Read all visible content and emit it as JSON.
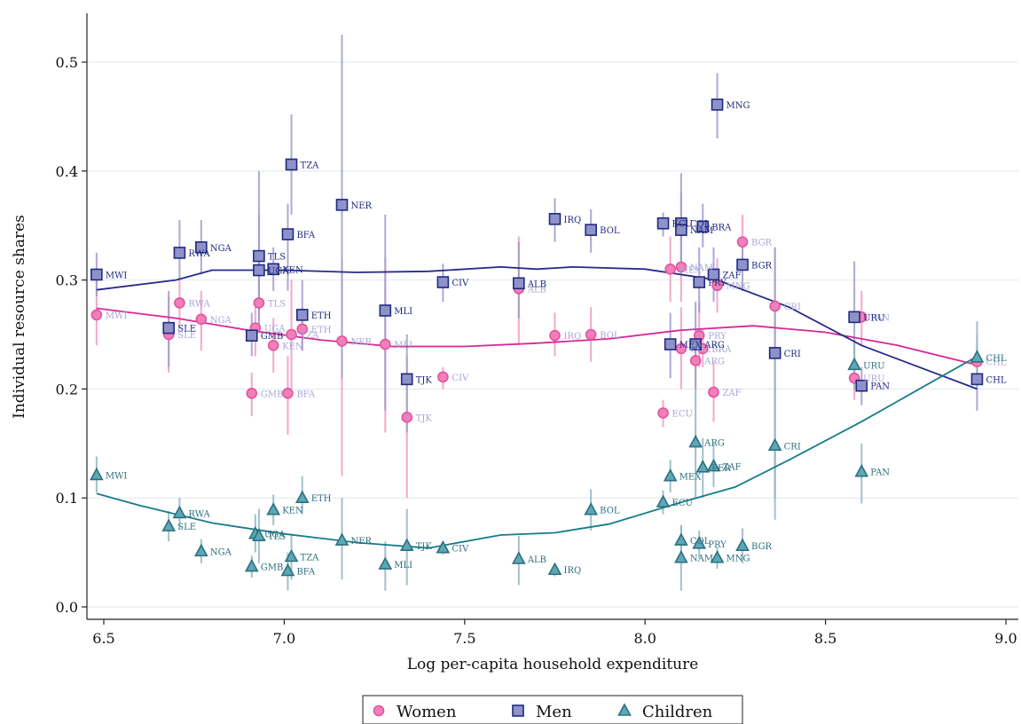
{
  "chart_data": {
    "type": "scatter",
    "xlabel": "Log per-capita household expenditure",
    "ylabel": "Individual resource shares",
    "xlim": [
      6.45,
      9.05
    ],
    "ylim": [
      -0.01,
      0.535
    ],
    "x_ticks": [
      "6.5",
      "7.0",
      "7.5",
      "8.0",
      "8.5",
      "9.0"
    ],
    "y_ticks": [
      "0.0",
      "0.1",
      "0.2",
      "0.3",
      "0.4",
      "0.5"
    ],
    "grid": "horizontal",
    "legend_position": "bottom",
    "legend": [
      "Women",
      "Men",
      "Children"
    ],
    "colors": {
      "women": "#e0559d",
      "women_fill": "#f27fba",
      "women_label": "#a9a6d6",
      "women_line": "#d8279a",
      "men": "#1f2a80",
      "men_fill": "#8f92c9",
      "men_label": "#1f2a80",
      "men_line": "#262b8c",
      "children": "#2e6f7e",
      "children_fill": "#5ba9b7",
      "children_label": "#2e6f7e",
      "children_line": "#187b8a",
      "ci_women": "#f19ac4",
      "ci_men": "#9c9ccd",
      "ci_children": "#90b7c2",
      "grid": "#dfe8ec"
    },
    "series": [
      {
        "name": "Women",
        "marker": "circle",
        "points": [
          {
            "label": "MWI",
            "x": 6.48,
            "y": 0.268,
            "ci": [
              0.24,
              0.3
            ]
          },
          {
            "label": "SLE",
            "x": 6.68,
            "y": 0.25,
            "ci": [
              0.215,
              0.285
            ]
          },
          {
            "label": "RWA",
            "x": 6.71,
            "y": 0.279,
            "ci": [
              0.255,
              0.3
            ]
          },
          {
            "label": "NGA",
            "x": 6.77,
            "y": 0.264,
            "ci": [
              0.235,
              0.29
            ]
          },
          {
            "label": "GMB",
            "x": 6.91,
            "y": 0.196,
            "ci": [
              0.175,
              0.215
            ]
          },
          {
            "label": "UGA",
            "x": 6.92,
            "y": 0.256,
            "ci": [
              0.23,
              0.28
            ]
          },
          {
            "label": "TLS",
            "x": 6.93,
            "y": 0.279,
            "ci": [
              0.255,
              0.3
            ]
          },
          {
            "label": "KEN",
            "x": 6.97,
            "y": 0.24,
            "ci": [
              0.215,
              0.265
            ]
          },
          {
            "label": "BFA",
            "x": 7.01,
            "y": 0.196,
            "ci": [
              0.158,
              0.23
            ]
          },
          {
            "label": "TZA",
            "x": 7.02,
            "y": 0.25,
            "ci": [
              0.2,
              0.3
            ]
          },
          {
            "label": "ETH",
            "x": 7.05,
            "y": 0.255,
            "ci": [
              0.235,
              0.275
            ]
          },
          {
            "label": "NER",
            "x": 7.16,
            "y": 0.244,
            "ci": [
              0.12,
              0.32
            ]
          },
          {
            "label": "MLI",
            "x": 7.28,
            "y": 0.241,
            "ci": [
              0.16,
              0.32
            ]
          },
          {
            "label": "TJK",
            "x": 7.34,
            "y": 0.174,
            "ci": [
              0.1,
              0.23
            ]
          },
          {
            "label": "CIV",
            "x": 7.44,
            "y": 0.211,
            "ci": [
              0.2,
              0.22
            ]
          },
          {
            "label": "ALB",
            "x": 7.65,
            "y": 0.292,
            "ci": [
              0.24,
              0.34
            ]
          },
          {
            "label": "IRQ",
            "x": 7.75,
            "y": 0.249,
            "ci": [
              0.23,
              0.27
            ]
          },
          {
            "label": "BOL",
            "x": 7.85,
            "y": 0.25,
            "ci": [
              0.225,
              0.275
            ]
          },
          {
            "label": "ECU",
            "x": 8.05,
            "y": 0.178,
            "ci": [
              0.165,
              0.19
            ]
          },
          {
            "label": "MEX",
            "x": 8.07,
            "y": 0.31,
            "ci": [
              0.28,
              0.34
            ]
          },
          {
            "label": "NAM",
            "x": 8.1,
            "y": 0.312,
            "ci": [
              0.28,
              0.345
            ]
          },
          {
            "label": "COL",
            "x": 8.1,
            "y": 0.237,
            "ci": [
              0.2,
              0.275
            ]
          },
          {
            "label": "ARG",
            "x": 8.14,
            "y": 0.226,
            "ci": [
              0.2,
              0.25
            ]
          },
          {
            "label": "PRY",
            "x": 8.15,
            "y": 0.249,
            "ci": [
              0.22,
              0.28
            ]
          },
          {
            "label": "BRA",
            "x": 8.16,
            "y": 0.237,
            "ci": [
              0.22,
              0.255
            ]
          },
          {
            "label": "ZAF",
            "x": 8.19,
            "y": 0.197,
            "ci": [
              0.17,
              0.225
            ]
          },
          {
            "label": "MNG",
            "x": 8.2,
            "y": 0.295,
            "ci": [
              0.27,
              0.32
            ]
          },
          {
            "label": "BGR",
            "x": 8.27,
            "y": 0.335,
            "ci": [
              0.31,
              0.36
            ]
          },
          {
            "label": "CRI",
            "x": 8.36,
            "y": 0.276,
            "ci": [
              0.23,
              0.33
            ]
          },
          {
            "label": "URU",
            "x": 8.58,
            "y": 0.21,
            "ci": [
              0.19,
              0.23
            ]
          },
          {
            "label": "PAN",
            "x": 8.6,
            "y": 0.266,
            "ci": [
              0.24,
              0.29
            ]
          },
          {
            "label": "CHL",
            "x": 8.92,
            "y": 0.225,
            "ci": [
              0.2,
              0.25
            ]
          }
        ]
      },
      {
        "name": "Men",
        "marker": "square",
        "points": [
          {
            "label": "MWI",
            "x": 6.48,
            "y": 0.305,
            "ci": [
              0.285,
              0.325
            ]
          },
          {
            "label": "SLE",
            "x": 6.68,
            "y": 0.256,
            "ci": [
              0.22,
              0.29
            ]
          },
          {
            "label": "RWA",
            "x": 6.71,
            "y": 0.325,
            "ci": [
              0.3,
              0.355
            ]
          },
          {
            "label": "NGA",
            "x": 6.77,
            "y": 0.33,
            "ci": [
              0.305,
              0.355
            ]
          },
          {
            "label": "GMB",
            "x": 6.91,
            "y": 0.249,
            "ci": [
              0.23,
              0.27
            ]
          },
          {
            "label": "TLS",
            "x": 6.93,
            "y": 0.322,
            "ci": [
              0.27,
              0.4
            ]
          },
          {
            "label": "UGA",
            "x": 6.93,
            "y": 0.309,
            "ci": [
              0.26,
              0.36
            ]
          },
          {
            "label": "KEN",
            "x": 6.97,
            "y": 0.31,
            "ci": [
              0.29,
              0.33
            ]
          },
          {
            "label": "BFA",
            "x": 7.01,
            "y": 0.342,
            "ci": [
              0.29,
              0.37
            ]
          },
          {
            "label": "TZA",
            "x": 7.02,
            "y": 0.406,
            "ci": [
              0.36,
              0.452
            ]
          },
          {
            "label": "ETH",
            "x": 7.05,
            "y": 0.268,
            "ci": [
              0.235,
              0.3
            ]
          },
          {
            "label": "NER",
            "x": 7.16,
            "y": 0.369,
            "ci": [
              0.21,
              0.525
            ]
          },
          {
            "label": "MLI",
            "x": 7.28,
            "y": 0.272,
            "ci": [
              0.18,
              0.36
            ]
          },
          {
            "label": "TJK",
            "x": 7.34,
            "y": 0.209,
            "ci": [
              0.16,
              0.25
            ]
          },
          {
            "label": "CIV",
            "x": 7.44,
            "y": 0.298,
            "ci": [
              0.28,
              0.315
            ]
          },
          {
            "label": "ALB",
            "x": 7.65,
            "y": 0.297,
            "ci": [
              0.265,
              0.335
            ]
          },
          {
            "label": "IRQ",
            "x": 7.75,
            "y": 0.356,
            "ci": [
              0.335,
              0.375
            ]
          },
          {
            "label": "BOL",
            "x": 7.85,
            "y": 0.346,
            "ci": [
              0.325,
              0.365
            ]
          },
          {
            "label": "ECU",
            "x": 8.05,
            "y": 0.352,
            "ci": [
              0.34,
              0.362
            ]
          },
          {
            "label": "MEX",
            "x": 8.07,
            "y": 0.241,
            "ci": [
              0.21,
              0.27
            ]
          },
          {
            "label": "COL",
            "x": 8.1,
            "y": 0.352,
            "ci": [
              0.31,
              0.398
            ]
          },
          {
            "label": "NAM",
            "x": 8.1,
            "y": 0.346,
            "ci": [
              0.31,
              0.38
            ]
          },
          {
            "label": "ARG",
            "x": 8.14,
            "y": 0.241,
            "ci": [
              0.2,
              0.28
            ]
          },
          {
            "label": "BRA",
            "x": 8.16,
            "y": 0.349,
            "ci": [
              0.33,
              0.37
            ]
          },
          {
            "label": "PRY",
            "x": 8.15,
            "y": 0.298,
            "ci": [
              0.27,
              0.33
            ]
          },
          {
            "label": "ZAF",
            "x": 8.19,
            "y": 0.305,
            "ci": [
              0.28,
              0.33
            ]
          },
          {
            "label": "MNG",
            "x": 8.2,
            "y": 0.461,
            "ci": [
              0.43,
              0.49
            ]
          },
          {
            "label": "BGR",
            "x": 8.27,
            "y": 0.314,
            "ci": [
              0.29,
              0.34
            ]
          },
          {
            "label": "CRI",
            "x": 8.36,
            "y": 0.233,
            "ci": [
              0.1,
              0.33
            ]
          },
          {
            "label": "URU",
            "x": 8.58,
            "y": 0.266,
            "ci": [
              0.215,
              0.317
            ]
          },
          {
            "label": "PAN",
            "x": 8.6,
            "y": 0.203,
            "ci": [
              0.185,
              0.22
            ]
          },
          {
            "label": "CHL",
            "x": 8.92,
            "y": 0.209,
            "ci": [
              0.18,
              0.24
            ]
          }
        ]
      },
      {
        "name": "Children",
        "marker": "triangle",
        "points": [
          {
            "label": "MWI",
            "x": 6.48,
            "y": 0.121,
            "ci": [
              0.105,
              0.138
            ]
          },
          {
            "label": "SLE",
            "x": 6.68,
            "y": 0.074,
            "ci": [
              0.06,
              0.088
            ]
          },
          {
            "label": "RWA",
            "x": 6.71,
            "y": 0.086,
            "ci": [
              0.072,
              0.1
            ]
          },
          {
            "label": "NGA",
            "x": 6.77,
            "y": 0.051,
            "ci": [
              0.04,
              0.062
            ]
          },
          {
            "label": "GMB",
            "x": 6.91,
            "y": 0.037,
            "ci": [
              0.027,
              0.047
            ]
          },
          {
            "label": "UGA",
            "x": 6.92,
            "y": 0.067,
            "ci": [
              0.05,
              0.085
            ]
          },
          {
            "label": "TLS",
            "x": 6.93,
            "y": 0.065,
            "ci": [
              0.04,
              0.09
            ]
          },
          {
            "label": "KEN",
            "x": 6.97,
            "y": 0.089,
            "ci": [
              0.075,
              0.103
            ]
          },
          {
            "label": "BFA",
            "x": 7.01,
            "y": 0.033,
            "ci": [
              0.015,
              0.05
            ]
          },
          {
            "label": "TZA",
            "x": 7.02,
            "y": 0.046,
            "ci": [
              0.025,
              0.067
            ]
          },
          {
            "label": "ETH",
            "x": 7.05,
            "y": 0.1,
            "ci": [
              0.085,
              0.12
            ]
          },
          {
            "label": "NER",
            "x": 7.16,
            "y": 0.061,
            "ci": [
              0.025,
              0.1
            ]
          },
          {
            "label": "MLI",
            "x": 7.28,
            "y": 0.039,
            "ci": [
              0.015,
              0.06
            ]
          },
          {
            "label": "TJK",
            "x": 7.34,
            "y": 0.056,
            "ci": [
              0.02,
              0.09
            ]
          },
          {
            "label": "CIV",
            "x": 7.44,
            "y": 0.054,
            "ci": [
              0.048,
              0.06
            ]
          },
          {
            "label": "ALB",
            "x": 7.65,
            "y": 0.044,
            "ci": [
              0.02,
              0.065
            ]
          },
          {
            "label": "IRQ",
            "x": 7.75,
            "y": 0.034,
            "ci": [
              0.028,
              0.04
            ]
          },
          {
            "label": "BOL",
            "x": 7.85,
            "y": 0.089,
            "ci": [
              0.07,
              0.108
            ]
          },
          {
            "label": "ECU",
            "x": 8.05,
            "y": 0.096,
            "ci": [
              0.085,
              0.107
            ]
          },
          {
            "label": "MEX",
            "x": 8.07,
            "y": 0.12,
            "ci": [
              0.105,
              0.135
            ]
          },
          {
            "label": "COL",
            "x": 8.1,
            "y": 0.061,
            "ci": [
              0.045,
              0.075
            ]
          },
          {
            "label": "NAM",
            "x": 8.1,
            "y": 0.045,
            "ci": [
              0.015,
              0.075
            ]
          },
          {
            "label": "ARG",
            "x": 8.14,
            "y": 0.151,
            "ci": [
              0.1,
              0.2
            ]
          },
          {
            "label": "PRY",
            "x": 8.15,
            "y": 0.058,
            "ci": [
              0.045,
              0.07
            ]
          },
          {
            "label": "PER",
            "x": 8.16,
            "y": 0.128,
            "ci": [
              0.1,
              0.155
            ]
          },
          {
            "label": "ZAF",
            "x": 8.19,
            "y": 0.129,
            "ci": [
              0.11,
              0.15
            ]
          },
          {
            "label": "MNG",
            "x": 8.2,
            "y": 0.045,
            "ci": [
              0.035,
              0.055
            ]
          },
          {
            "label": "BGR",
            "x": 8.27,
            "y": 0.056,
            "ci": [
              0.04,
              0.072
            ]
          },
          {
            "label": "CRI",
            "x": 8.36,
            "y": 0.148,
            "ci": [
              0.08,
              0.23
            ]
          },
          {
            "label": "URU",
            "x": 8.58,
            "y": 0.222,
            "ci": [
              0.2,
              0.245
            ]
          },
          {
            "label": "PAN",
            "x": 8.6,
            "y": 0.124,
            "ci": [
              0.095,
              0.15
            ]
          },
          {
            "label": "CHL",
            "x": 8.92,
            "y": 0.229,
            "ci": [
              0.2,
              0.262
            ]
          }
        ]
      }
    ],
    "fit_lines": [
      {
        "name": "Women",
        "x": [
          6.48,
          6.7,
          6.9,
          7.1,
          7.3,
          7.5,
          7.7,
          7.9,
          8.1,
          8.3,
          8.5,
          8.7,
          8.92
        ],
        "y": [
          0.274,
          0.265,
          0.254,
          0.245,
          0.239,
          0.239,
          0.242,
          0.246,
          0.254,
          0.258,
          0.252,
          0.24,
          0.222
        ]
      },
      {
        "name": "Men",
        "x": [
          6.48,
          6.7,
          6.8,
          7.0,
          7.2,
          7.4,
          7.6,
          7.7,
          7.8,
          8.0,
          8.2,
          8.4,
          8.6,
          8.92
        ],
        "y": [
          0.291,
          0.3,
          0.309,
          0.309,
          0.307,
          0.308,
          0.312,
          0.31,
          0.312,
          0.31,
          0.3,
          0.275,
          0.24,
          0.2
        ]
      },
      {
        "name": "Children",
        "x": [
          6.48,
          6.6,
          6.8,
          7.0,
          7.2,
          7.4,
          7.6,
          7.75,
          7.9,
          8.1,
          8.25,
          8.4,
          8.6,
          8.92
        ],
        "y": [
          0.104,
          0.093,
          0.077,
          0.067,
          0.059,
          0.054,
          0.066,
          0.068,
          0.076,
          0.096,
          0.11,
          0.135,
          0.17,
          0.23
        ]
      }
    ]
  }
}
